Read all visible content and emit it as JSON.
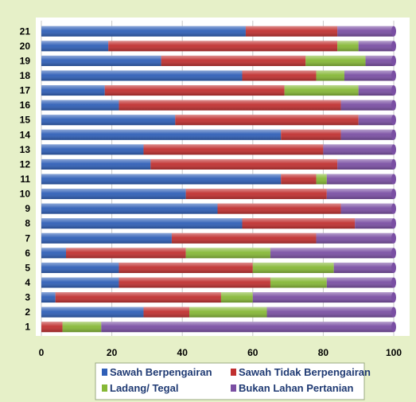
{
  "chart_data": {
    "type": "bar",
    "orientation": "horizontal",
    "stacked": true,
    "title": "",
    "xlabel": "",
    "ylabel": "",
    "xlim": [
      0,
      100
    ],
    "x_ticks": [
      "0",
      "20",
      "40",
      "60",
      "80",
      "100"
    ],
    "grid": true,
    "legend_position": "bottom",
    "categories": [
      "1",
      "2",
      "3",
      "4",
      "5",
      "6",
      "7",
      "8",
      "9",
      "10",
      "11",
      "12",
      "13",
      "14",
      "15",
      "16",
      "17",
      "18",
      "19",
      "20",
      "21"
    ],
    "series": [
      {
        "name": "Sawah Berpengairan",
        "color": "#2f5fb7",
        "values": [
          0,
          29,
          4,
          22,
          22,
          7,
          37,
          57,
          50,
          41,
          68,
          31,
          29,
          68,
          38,
          22,
          18,
          57,
          34,
          19,
          58
        ]
      },
      {
        "name": "Sawah Tidak Berpengairan",
        "color": "#c03030",
        "values": [
          6,
          13,
          47,
          43,
          38,
          34,
          41,
          32,
          35,
          40,
          10,
          53,
          51,
          17,
          52,
          63,
          51,
          21,
          41,
          65,
          26
        ]
      },
      {
        "name": "Ladang/ Tegal",
        "color": "#86b836",
        "values": [
          11,
          22,
          9,
          16,
          23,
          24,
          0,
          0,
          0,
          0,
          3,
          0,
          0,
          0,
          0,
          0,
          21,
          8,
          17,
          6,
          0
        ]
      },
      {
        "name": "Bukan Lahan Pertanian",
        "color": "#7a4fa3",
        "values": [
          83,
          36,
          40,
          19,
          17,
          35,
          22,
          11,
          15,
          19,
          19,
          16,
          20,
          15,
          10,
          15,
          10,
          14,
          8,
          10,
          16
        ]
      }
    ]
  }
}
